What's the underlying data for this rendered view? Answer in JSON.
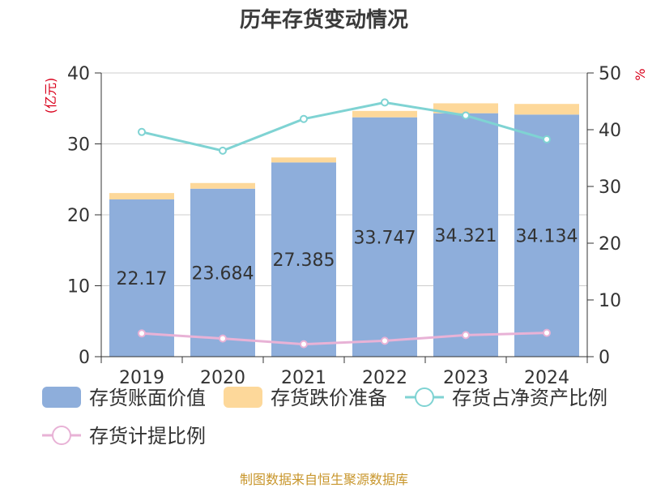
{
  "chart_data": {
    "type": "bar",
    "title": "历年存货变动情况",
    "categories": [
      "2019",
      "2020",
      "2021",
      "2022",
      "2023",
      "2024"
    ],
    "ylabel_left": "(亿元)",
    "ylabel_right": "%",
    "ylim_left": [
      0,
      40
    ],
    "ylim_right": [
      0,
      50
    ],
    "yticks_left": [
      "0",
      "10",
      "20",
      "30",
      "40"
    ],
    "yticks_right": [
      "0",
      "10",
      "20",
      "30",
      "40",
      "50"
    ],
    "grid": true,
    "legend_position": "bottom",
    "series": [
      {
        "name": "存货账面价值",
        "kind": "bar",
        "axis": "left",
        "color": "#8eaedb",
        "values": [
          22.17,
          23.684,
          27.385,
          33.747,
          34.321,
          34.134
        ],
        "labels": [
          "22.17",
          "23.684",
          "27.385",
          "33.747",
          "34.321",
          "34.134"
        ]
      },
      {
        "name": "存货跌价准备",
        "kind": "bar_stacked",
        "axis": "left",
        "color": "#fdd89a",
        "values": [
          0.9,
          0.8,
          0.7,
          0.9,
          1.4,
          1.5
        ]
      },
      {
        "name": "存货占净资产比例",
        "kind": "line",
        "axis": "right",
        "color": "#7fd3d3",
        "values": [
          39.6,
          36.3,
          41.9,
          44.8,
          42.5,
          38.3
        ]
      },
      {
        "name": "存货计提比例",
        "kind": "line",
        "axis": "right",
        "color": "#e8b2d6",
        "values": [
          4.1,
          3.2,
          2.2,
          2.8,
          3.8,
          4.2
        ]
      }
    ]
  },
  "footer": {
    "source": "制图数据来自恒生聚源数据库"
  },
  "colors": {
    "axis_unit_label": "#d9001b",
    "grid": "#cccccc",
    "axis": "#333333",
    "source_text": "#c8962c"
  }
}
